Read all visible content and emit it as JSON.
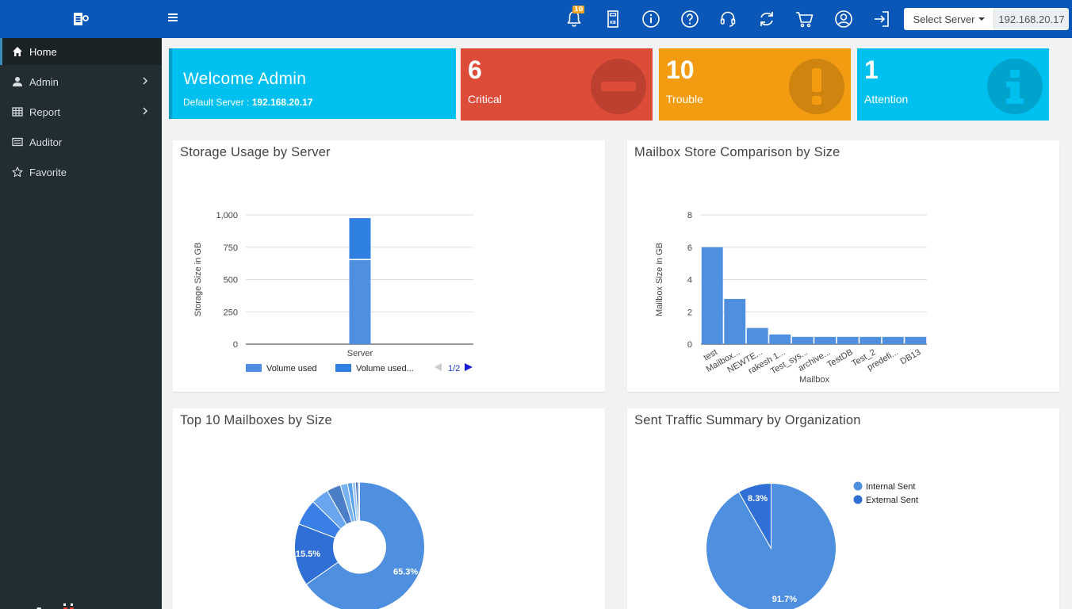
{
  "header": {
    "select_server_label": "Select Server",
    "server_ip": "192.168.20.17",
    "notification_count": "10"
  },
  "icons": [
    "menu-icon",
    "bell-icon",
    "kb-icon",
    "info-icon",
    "help-icon",
    "headset-icon",
    "refresh-icon",
    "cart-icon",
    "user-icon",
    "logout-icon"
  ],
  "sidebar": {
    "items": [
      {
        "label": "Home",
        "icon": "home-icon",
        "active": true
      },
      {
        "label": "Admin",
        "icon": "user-icon",
        "arrow": true
      },
      {
        "label": "Report",
        "icon": "table-icon",
        "arrow": true
      },
      {
        "label": "Auditor",
        "icon": "list-icon"
      },
      {
        "label": "Favorite",
        "icon": "star-icon"
      }
    ],
    "brand": "stellar"
  },
  "cards": {
    "welcome_title": "Welcome Admin",
    "default_server_label": "Default Server :",
    "default_server_value": "192.168.20.17",
    "critical": {
      "count": "6",
      "label": "Critical"
    },
    "trouble": {
      "count": "10",
      "label": "Trouble"
    },
    "attention": {
      "count": "1",
      "label": "Attention"
    }
  },
  "colors": {
    "critical": "#dd4b39",
    "trouble": "#f39c12",
    "attention": "#00c0ef",
    "series_primary": "#4f8fe0",
    "series_secondary": "#2f6fd6"
  },
  "panels": {
    "storage_title": "Storage Usage by Server",
    "mailbox_store_title": "Mailbox Store Comparison by Size",
    "top10_title": "Top 10 Mailboxes by Size",
    "sent_traffic_title": "Sent Traffic Summary by Organization"
  },
  "chart_data": [
    {
      "type": "bar",
      "title": "Storage Usage by Server",
      "ylabel": "Storage Size in GB",
      "xlabel": "",
      "categories": [
        "Server"
      ],
      "series": [
        {
          "name": "Volume used",
          "values": [
            650
          ],
          "color": "#4f8fe0"
        },
        {
          "name": "Volume used...",
          "values": [
            325
          ],
          "color": "#2f80e0"
        }
      ],
      "stacked": true,
      "ylim": [
        0,
        1000
      ],
      "yticks": [
        "0",
        "250",
        "500",
        "750",
        "1,000"
      ],
      "legend_page": "1/2",
      "legend_position": "bottom"
    },
    {
      "type": "bar",
      "title": "Mailbox Store Comparison by Size",
      "ylabel": "Mailbox Size in GB",
      "xlabel": "Mailbox",
      "categories": [
        "test",
        "Mailbox...",
        "NEWTE...",
        "rakesh 1...",
        "Test_sys...",
        "archive...",
        "TestDB",
        "Test_2",
        "predefi...",
        "DB13"
      ],
      "values": [
        6,
        2.8,
        1.0,
        0.6,
        0.45,
        0.45,
        0.45,
        0.45,
        0.45,
        0.45
      ],
      "ylim": [
        0,
        8
      ],
      "yticks": [
        "0",
        "2",
        "4",
        "6",
        "8"
      ]
    },
    {
      "type": "pie",
      "donut": true,
      "title": "Top 10 Mailboxes by Size",
      "values": [
        65.3,
        15.5,
        6.5,
        4.4,
        3.5,
        1.8,
        1.2,
        0.8,
        0.6,
        0.4
      ],
      "shown_labels": [
        "65.3%",
        "15.5%"
      ],
      "colors": [
        "#4f8fe0",
        "#2f6fd6",
        "#3a7fe6",
        "#6aa6ef",
        "#4a7fc8",
        "#78b3ef",
        "#5aa0e8",
        "#9cc6f3",
        "#3f6fb8",
        "#b0d0f5"
      ]
    },
    {
      "type": "pie",
      "title": "Sent Traffic Summary by Organization",
      "series": [
        {
          "name": "Internal Sent",
          "value": 91.7,
          "label": "91.7%",
          "color": "#4f8fe0"
        },
        {
          "name": "External Sent",
          "value": 8.3,
          "label": "8.3%",
          "color": "#2f6fd6"
        }
      ],
      "legend_position": "right"
    }
  ]
}
